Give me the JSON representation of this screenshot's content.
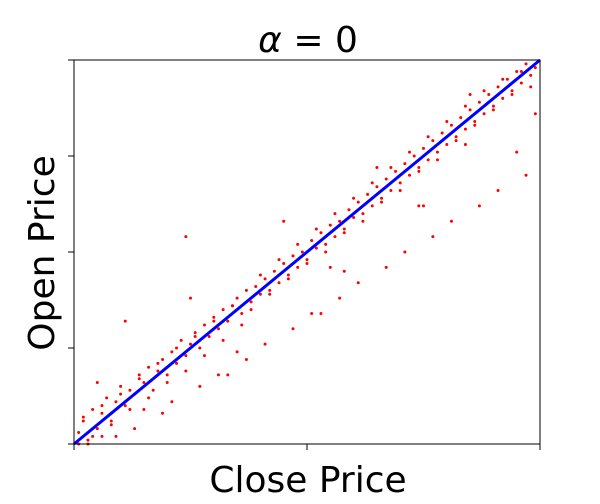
{
  "chart_data": {
    "type": "scatter",
    "title_prefix": "α",
    "title_value": "0",
    "xlabel": "Close Price",
    "ylabel": "Open Price",
    "xlim": [
      0,
      1
    ],
    "ylim": [
      0,
      1
    ],
    "grid": false,
    "x_ticks": [
      0,
      0.5,
      1
    ],
    "y_ticks": [
      0,
      0.25,
      0.5,
      0.75,
      1
    ],
    "series": [
      {
        "marker": "dot",
        "color": "#ff0000",
        "x": [
          0.01,
          0.02,
          0.03,
          0.04,
          0.05,
          0.06,
          0.07,
          0.08,
          0.09,
          0.1,
          0.11,
          0.12,
          0.13,
          0.14,
          0.15,
          0.16,
          0.17,
          0.18,
          0.19,
          0.2,
          0.21,
          0.22,
          0.23,
          0.24,
          0.25,
          0.26,
          0.27,
          0.28,
          0.29,
          0.3,
          0.31,
          0.32,
          0.33,
          0.34,
          0.35,
          0.36,
          0.37,
          0.38,
          0.39,
          0.4,
          0.41,
          0.42,
          0.43,
          0.44,
          0.45,
          0.46,
          0.47,
          0.48,
          0.49,
          0.5,
          0.51,
          0.52,
          0.53,
          0.54,
          0.55,
          0.56,
          0.57,
          0.58,
          0.59,
          0.6,
          0.61,
          0.62,
          0.63,
          0.64,
          0.65,
          0.66,
          0.67,
          0.68,
          0.69,
          0.7,
          0.71,
          0.72,
          0.73,
          0.74,
          0.75,
          0.76,
          0.77,
          0.78,
          0.79,
          0.8,
          0.81,
          0.82,
          0.83,
          0.84,
          0.85,
          0.86,
          0.87,
          0.88,
          0.89,
          0.9,
          0.91,
          0.92,
          0.93,
          0.94,
          0.95,
          0.96,
          0.97,
          0.98,
          0.99,
          0.02,
          0.04,
          0.06,
          0.08,
          0.1,
          0.12,
          0.14,
          0.16,
          0.18,
          0.2,
          0.22,
          0.24,
          0.26,
          0.28,
          0.3,
          0.32,
          0.34,
          0.36,
          0.38,
          0.4,
          0.42,
          0.44,
          0.46,
          0.48,
          0.5,
          0.52,
          0.54,
          0.56,
          0.58,
          0.6,
          0.62,
          0.64,
          0.66,
          0.68,
          0.7,
          0.72,
          0.74,
          0.76,
          0.78,
          0.8,
          0.82,
          0.84,
          0.86,
          0.88,
          0.9,
          0.92,
          0.94,
          0.96,
          0.98,
          0.05,
          0.15,
          0.25,
          0.35,
          0.45,
          0.55,
          0.65,
          0.75,
          0.85,
          0.95,
          0.11,
          0.24,
          0.53,
          0.74,
          0.99,
          0.01,
          0.03,
          0.09,
          0.13,
          0.19,
          0.21,
          0.27,
          0.31,
          0.37,
          0.41,
          0.47,
          0.51,
          0.57,
          0.61,
          0.67,
          0.71,
          0.77,
          0.81,
          0.87,
          0.91,
          0.97,
          0.06,
          0.33,
          0.58,
          0.84
        ],
        "y": [
          0.03,
          0.06,
          0.0,
          0.09,
          0.04,
          0.08,
          0.12,
          0.05,
          0.11,
          0.15,
          0.1,
          0.14,
          0.13,
          0.18,
          0.16,
          0.2,
          0.14,
          0.19,
          0.22,
          0.18,
          0.24,
          0.21,
          0.27,
          0.23,
          0.26,
          0.29,
          0.25,
          0.31,
          0.28,
          0.33,
          0.3,
          0.35,
          0.32,
          0.36,
          0.38,
          0.34,
          0.4,
          0.37,
          0.41,
          0.39,
          0.43,
          0.4,
          0.45,
          0.42,
          0.47,
          0.44,
          0.49,
          0.46,
          0.5,
          0.48,
          0.53,
          0.51,
          0.55,
          0.52,
          0.57,
          0.54,
          0.58,
          0.56,
          0.61,
          0.59,
          0.63,
          0.6,
          0.65,
          0.62,
          0.67,
          0.64,
          0.69,
          0.66,
          0.71,
          0.68,
          0.73,
          0.7,
          0.75,
          0.72,
          0.77,
          0.74,
          0.79,
          0.76,
          0.81,
          0.78,
          0.83,
          0.8,
          0.85,
          0.82,
          0.87,
          0.84,
          0.89,
          0.86,
          0.91,
          0.88,
          0.93,
          0.9,
          0.95,
          0.92,
          0.97,
          0.94,
          0.99,
          0.96,
          0.98,
          0.07,
          0.02,
          0.1,
          0.06,
          0.13,
          0.09,
          0.17,
          0.12,
          0.21,
          0.16,
          0.25,
          0.19,
          0.28,
          0.23,
          0.32,
          0.27,
          0.36,
          0.31,
          0.35,
          0.44,
          0.39,
          0.48,
          0.43,
          0.52,
          0.47,
          0.56,
          0.5,
          0.6,
          0.55,
          0.64,
          0.58,
          0.68,
          0.63,
          0.72,
          0.66,
          0.76,
          0.71,
          0.8,
          0.74,
          0.84,
          0.79,
          0.88,
          0.83,
          0.92,
          0.87,
          0.95,
          0.91,
          0.97,
          0.93,
          0.16,
          0.09,
          0.38,
          0.24,
          0.58,
          0.46,
          0.72,
          0.62,
          0.91,
          0.76,
          0.32,
          0.54,
          0.34,
          0.62,
          0.86,
          0.0,
          0.01,
          0.02,
          0.04,
          0.08,
          0.11,
          0.15,
          0.18,
          0.22,
          0.26,
          0.3,
          0.34,
          0.38,
          0.42,
          0.46,
          0.5,
          0.54,
          0.58,
          0.62,
          0.66,
          0.7,
          0.02,
          0.18,
          0.45,
          0.78
        ]
      },
      {
        "marker": "line",
        "color": "#0000ff",
        "x": [
          0,
          1
        ],
        "y": [
          0,
          1
        ]
      }
    ]
  }
}
